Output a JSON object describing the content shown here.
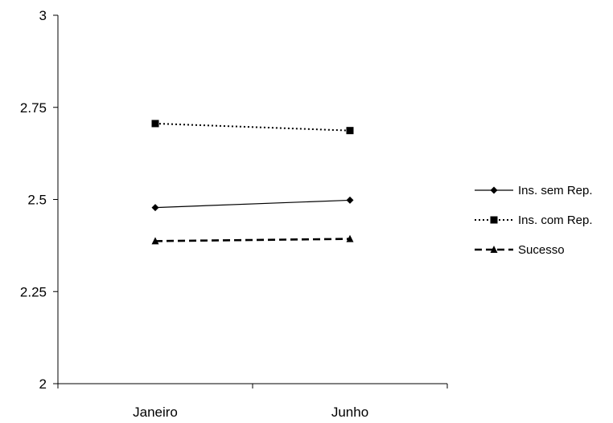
{
  "chart_data": {
    "type": "line",
    "categories": [
      "Janeiro",
      "Junho"
    ],
    "ylim": [
      2,
      3
    ],
    "yticks": [
      2,
      2.25,
      2.5,
      2.75,
      3
    ],
    "ytick_labels": [
      "2",
      "2.25",
      "2.5",
      "2.75",
      "3"
    ],
    "grid": false,
    "legend_position": "right",
    "series": [
      {
        "name": "Ins. sem Rep.",
        "values": [
          2.478,
          2.498
        ],
        "marker": "diamond",
        "line_style": "solid",
        "color": "#000000"
      },
      {
        "name": "Ins. com Rep.",
        "values": [
          2.706,
          2.687
        ],
        "marker": "square",
        "line_style": "dotted",
        "color": "#000000"
      },
      {
        "name": "Sucesso",
        "values": [
          2.387,
          2.393
        ],
        "marker": "triangle",
        "line_style": "dashed",
        "color": "#000000"
      }
    ]
  }
}
